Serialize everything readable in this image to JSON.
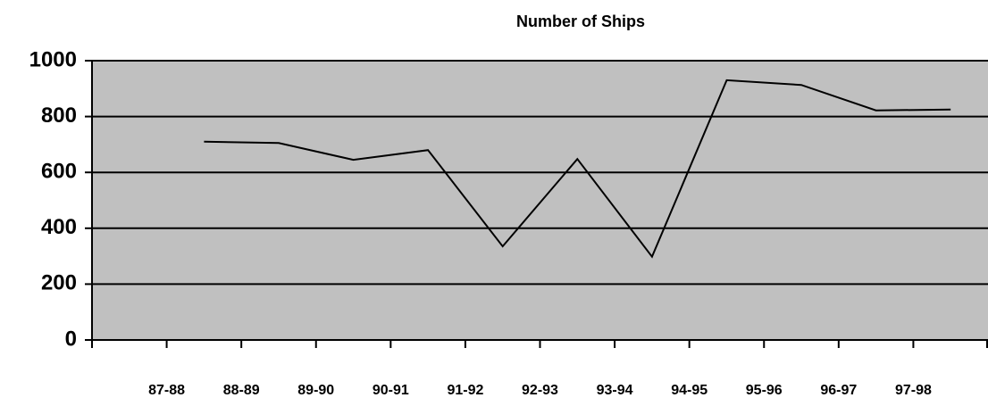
{
  "chart_data": {
    "type": "line",
    "title": "Number of Ships",
    "categories": [
      "87-88",
      "88-89",
      "89-90",
      "90-91",
      "91-92",
      "92-93",
      "93-94",
      "94-95",
      "95-96",
      "96-97",
      "97-98"
    ],
    "values": [
      710,
      705,
      645,
      680,
      335,
      648,
      298,
      930,
      913,
      822,
      825
    ],
    "color": "#000000",
    "background": "#c0c0c0",
    "ylim": [
      0,
      1000
    ],
    "yticks": [
      0,
      200,
      400,
      600,
      800,
      1000
    ],
    "grid": true
  }
}
